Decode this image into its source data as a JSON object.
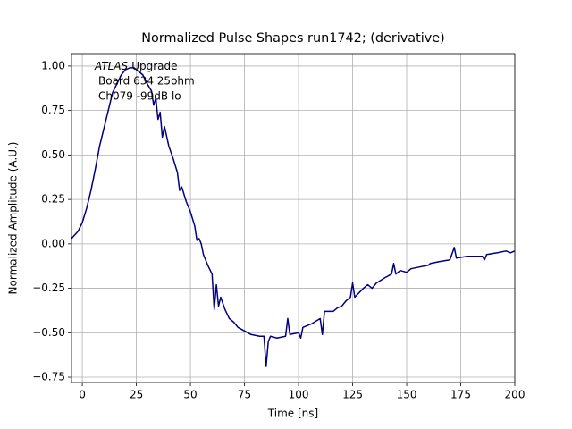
{
  "chart_data": {
    "type": "line",
    "title": "Normalized Pulse Shapes run1742; (derivative)",
    "xlabel": "Time [ns]",
    "ylabel": "Normalized Amplitude (A.U.)",
    "annotation": {
      "emphasis": "ATLAS",
      "text": "Upgrade",
      "lines": [
        "Board 634 25ohm",
        "Ch079 -99dB lo"
      ]
    },
    "x": [
      -5,
      -2,
      0,
      2,
      4,
      6,
      8,
      10,
      12,
      14,
      16,
      18,
      20,
      22,
      24,
      26,
      28,
      30,
      32,
      33,
      34,
      35,
      36,
      37,
      38,
      40,
      42,
      44,
      45,
      46,
      47,
      48,
      50,
      52,
      53,
      54,
      55,
      56,
      58,
      60,
      61,
      62,
      63,
      64,
      66,
      68,
      70,
      72,
      75,
      78,
      82,
      84,
      85,
      86,
      87,
      90,
      94,
      95,
      96,
      100,
      101,
      102,
      106,
      110,
      111,
      112,
      116,
      118,
      120,
      122,
      124,
      125,
      126,
      130,
      132,
      134,
      136,
      140,
      143,
      144,
      145,
      147,
      150,
      152,
      156,
      160,
      161,
      165,
      170,
      172,
      173,
      178,
      182,
      185,
      186,
      187,
      192,
      196,
      198,
      200
    ],
    "series": [
      {
        "color": "#000080",
        "values": [
          0.03,
          0.07,
          0.12,
          0.2,
          0.3,
          0.42,
          0.55,
          0.65,
          0.75,
          0.85,
          0.9,
          0.95,
          0.98,
          0.99,
          0.99,
          0.97,
          0.95,
          0.9,
          0.86,
          0.78,
          0.82,
          0.7,
          0.74,
          0.6,
          0.66,
          0.55,
          0.48,
          0.4,
          0.3,
          0.32,
          0.28,
          0.24,
          0.18,
          0.1,
          0.02,
          0.03,
          0.0,
          -0.06,
          -0.12,
          -0.17,
          -0.37,
          -0.23,
          -0.35,
          -0.3,
          -0.37,
          -0.42,
          -0.44,
          -0.47,
          -0.49,
          -0.51,
          -0.52,
          -0.52,
          -0.69,
          -0.55,
          -0.52,
          -0.53,
          -0.52,
          -0.42,
          -0.51,
          -0.5,
          -0.53,
          -0.47,
          -0.45,
          -0.42,
          -0.51,
          -0.38,
          -0.38,
          -0.36,
          -0.35,
          -0.32,
          -0.3,
          -0.22,
          -0.3,
          -0.25,
          -0.23,
          -0.25,
          -0.22,
          -0.19,
          -0.17,
          -0.11,
          -0.17,
          -0.15,
          -0.16,
          -0.14,
          -0.13,
          -0.12,
          -0.11,
          -0.1,
          -0.09,
          -0.02,
          -0.08,
          -0.07,
          -0.07,
          -0.07,
          -0.09,
          -0.06,
          -0.05,
          -0.04,
          -0.05,
          -0.04
        ]
      }
    ],
    "xlim": [
      -5,
      200
    ],
    "ylim": [
      -0.78,
      1.07
    ],
    "xticks": [
      0,
      25,
      50,
      75,
      100,
      125,
      150,
      175,
      200
    ],
    "yticks": [
      {
        "value": -0.75,
        "label": "−0.75"
      },
      {
        "value": -0.5,
        "label": "−0.50"
      },
      {
        "value": -0.25,
        "label": "−0.25"
      },
      {
        "value": 0,
        "label": "0.00"
      },
      {
        "value": 0.25,
        "label": "0.25"
      },
      {
        "value": 0.5,
        "label": "0.50"
      },
      {
        "value": 0.75,
        "label": "0.75"
      },
      {
        "value": 1,
        "label": "1.00"
      }
    ],
    "grid": true
  }
}
